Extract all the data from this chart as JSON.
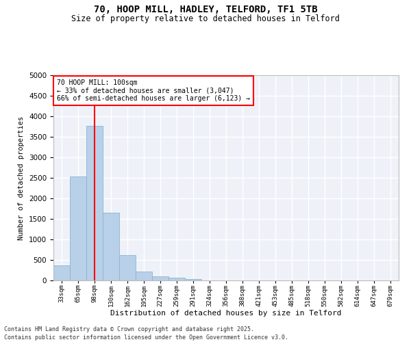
{
  "title": "70, HOOP MILL, HADLEY, TELFORD, TF1 5TB",
  "subtitle": "Size of property relative to detached houses in Telford",
  "xlabel": "Distribution of detached houses by size in Telford",
  "ylabel": "Number of detached properties",
  "categories": [
    "33sqm",
    "65sqm",
    "98sqm",
    "130sqm",
    "162sqm",
    "195sqm",
    "227sqm",
    "259sqm",
    "291sqm",
    "324sqm",
    "356sqm",
    "388sqm",
    "421sqm",
    "453sqm",
    "485sqm",
    "518sqm",
    "550sqm",
    "582sqm",
    "614sqm",
    "647sqm",
    "679sqm"
  ],
  "values": [
    370,
    2540,
    3760,
    1650,
    620,
    210,
    100,
    60,
    40,
    0,
    0,
    0,
    0,
    0,
    0,
    0,
    0,
    0,
    0,
    0,
    0
  ],
  "bar_color": "#b8d0e8",
  "bar_edge_color": "#8ab4d4",
  "vline_x_index": 2,
  "vline_color": "red",
  "annotation_line1": "70 HOOP MILL: 100sqm",
  "annotation_line2": "← 33% of detached houses are smaller (3,047)",
  "annotation_line3": "66% of semi-detached houses are larger (6,123) →",
  "ylim": [
    0,
    5000
  ],
  "yticks": [
    0,
    500,
    1000,
    1500,
    2000,
    2500,
    3000,
    3500,
    4000,
    4500,
    5000
  ],
  "background_color": "#eef2f8",
  "grid_color": "white",
  "footnote1": "Contains HM Land Registry data © Crown copyright and database right 2025.",
  "footnote2": "Contains public sector information licensed under the Open Government Licence v3.0."
}
